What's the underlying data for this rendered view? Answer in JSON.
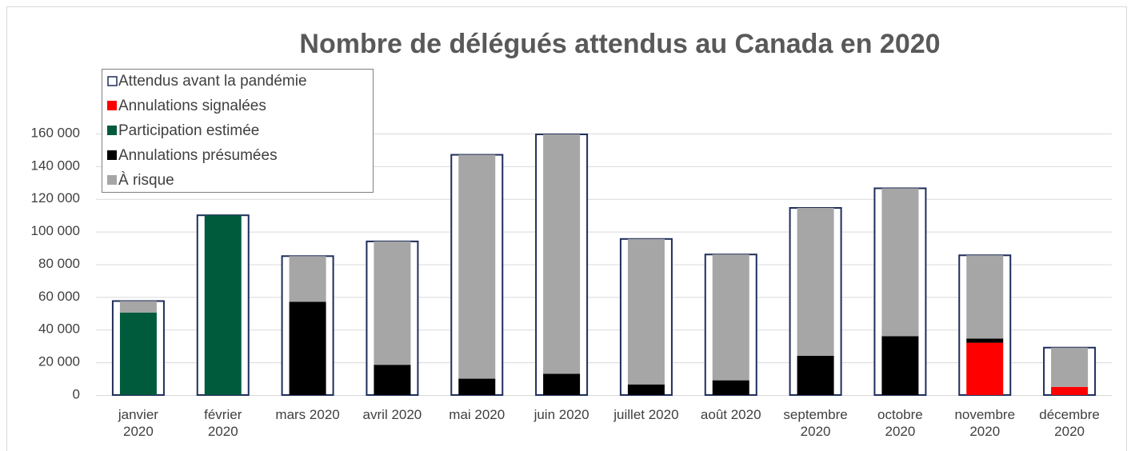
{
  "chart_data": {
    "type": "bar",
    "title": "Nombre de délégués attendus au Canada en 2020",
    "categories": [
      "janvier\n2020",
      "février\n2020",
      "mars 2020",
      "avril 2020",
      "mai 2020",
      "juin 2020",
      "juillet 2020",
      "août 2020",
      "septembre\n2020",
      "octobre\n2020",
      "novembre\n2020",
      "décembre\n2020"
    ],
    "series": [
      {
        "name": "Attendus avant la pandémie",
        "color": "#1f2d5a",
        "values": [
          57500,
          110000,
          85000,
          94000,
          147000,
          159500,
          95500,
          86000,
          114500,
          126500,
          85500,
          29000
        ]
      },
      {
        "name": "Annulations signalées",
        "color": "#ff0000",
        "values": [
          0,
          0,
          0,
          0,
          0,
          0,
          0,
          0,
          0,
          0,
          32000,
          5000
        ]
      },
      {
        "name": "Participation estimée",
        "color": "#005a3c",
        "values": [
          50500,
          110000,
          0,
          0,
          0,
          0,
          0,
          0,
          0,
          0,
          0,
          0
        ]
      },
      {
        "name": "Annulations présumées",
        "color": "#000000",
        "values": [
          0,
          0,
          57000,
          18500,
          10000,
          13000,
          6500,
          9000,
          24000,
          36000,
          2500,
          0
        ]
      },
      {
        "name": "À risque",
        "color": "#a6a6a6",
        "values": [
          7000,
          0,
          28000,
          75500,
          137000,
          146500,
          89000,
          77000,
          90500,
          90500,
          51000,
          24000
        ]
      }
    ],
    "ylim": [
      0,
      160000
    ],
    "yticks": [
      0,
      {
        "value": 20000,
        "label": "20 000"
      },
      {
        "value": 40000,
        "label": "40 000"
      },
      {
        "value": 60000,
        "label": "60 000"
      },
      {
        "value": 80000,
        "label": "80 000"
      },
      {
        "value": 100000,
        "label": "100 000"
      },
      {
        "value": 120000,
        "label": "120 000"
      },
      {
        "value": 140000,
        "label": "140 000"
      },
      {
        "value": 160000,
        "label": "160 000"
      }
    ],
    "grid": true,
    "legend": "upper left"
  }
}
